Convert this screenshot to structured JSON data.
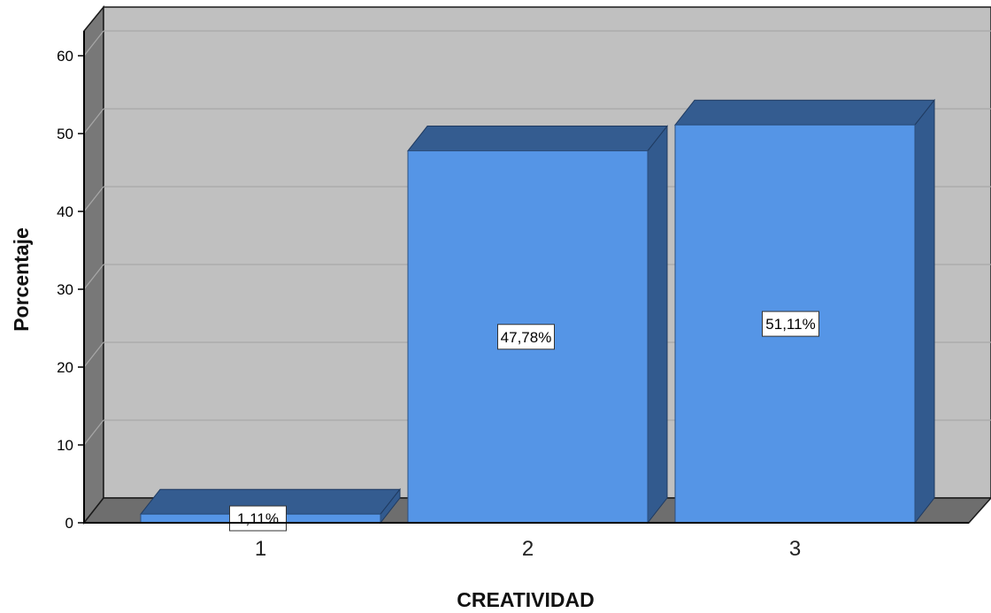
{
  "chart_data": {
    "type": "bar",
    "style": "3d",
    "categories": [
      "1",
      "2",
      "3"
    ],
    "values": [
      1.11,
      47.78,
      51.11
    ],
    "data_labels": [
      "1,11%",
      "47,78%",
      "51,11%"
    ],
    "title": "",
    "xlabel": "CREATIVIDAD",
    "ylabel": "Porcentaje",
    "ylim": [
      0,
      63
    ],
    "yticks": [
      0,
      10,
      20,
      30,
      40,
      50,
      60
    ],
    "grid": true,
    "legend": "none",
    "colors": {
      "bar_front": "#5595E6",
      "bar_side": "#325A8E",
      "bar_top": "#345C90",
      "plot_back": "#C0C0C0",
      "left_wall": "#787878",
      "floor": "#6E6E6E",
      "gridline": "#A8A8A8"
    }
  }
}
